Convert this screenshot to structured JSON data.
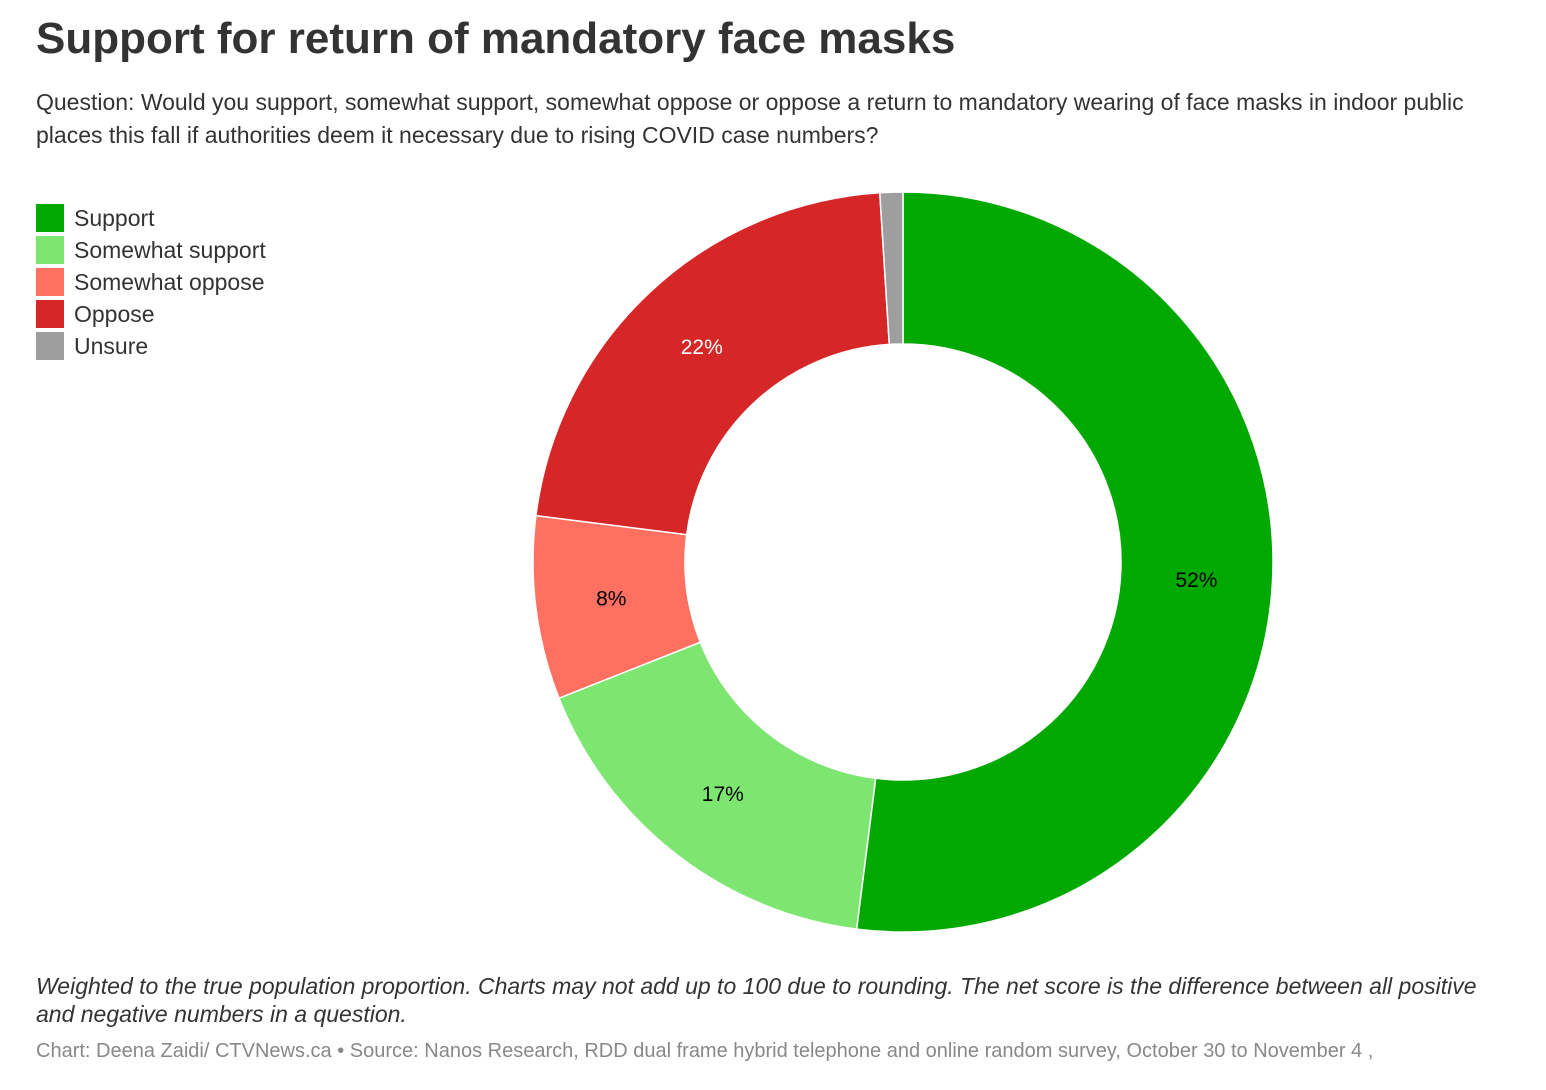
{
  "header": {
    "title": "Support for return of mandatory face masks",
    "subtitle": "Question: Would you support, somewhat support, somewhat oppose or oppose a return to mandatory wearing of face masks in indoor public places this fall if authorities deem it necessary due to rising COVID case numbers?"
  },
  "chart_data": {
    "type": "pie",
    "variant": "donut",
    "legend_position": "top-left",
    "categories": [
      "Support",
      "Somewhat support",
      "Somewhat oppose",
      "Oppose",
      "Unsure"
    ],
    "values": [
      52,
      17,
      8,
      22,
      1
    ],
    "data_labels": [
      "52%",
      "17%",
      "8%",
      "22%",
      ""
    ],
    "colors": [
      "#00a800",
      "#7de670",
      "#ff7060",
      "#d62728",
      "#9e9e9e"
    ],
    "label_colors": [
      "#000000",
      "#000000",
      "#000000",
      "#ffffff",
      "#000000"
    ]
  },
  "footer": {
    "notes": "Weighted to the true population proportion. Charts may not add up to 100 due to rounding. The net score is the difference between all positive and negative numbers in a question.",
    "source": "Chart: Deena Zaidi/ CTVNews.ca • Source: Nanos Research, RDD dual frame hybrid telephone and online random survey, October 30 to November 4 ,"
  }
}
